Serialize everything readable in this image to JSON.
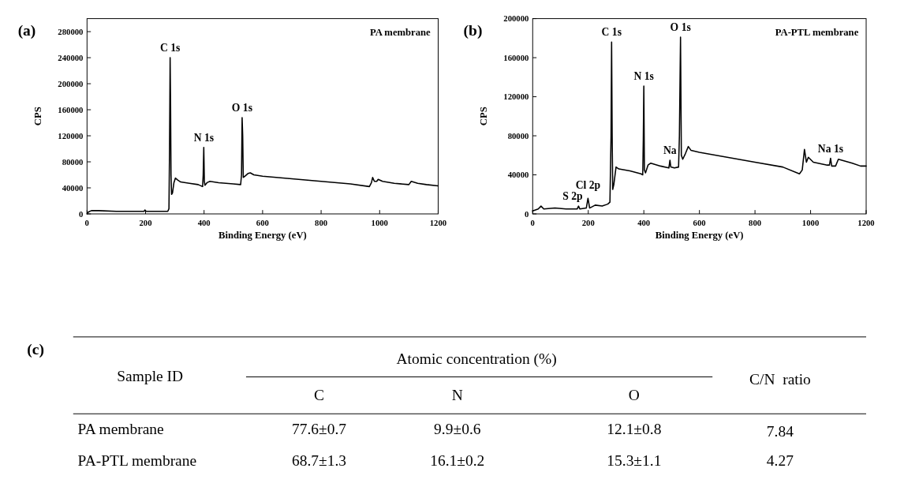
{
  "chart_data": [
    {
      "type": "line",
      "title": "(a)",
      "xlabel": "Binding Energy (eV)",
      "ylabel": "CPS",
      "xlim": [
        0,
        1200
      ],
      "xticks": [
        0,
        200,
        400,
        600,
        800,
        1000,
        1200
      ],
      "ylim": [
        0,
        300000
      ],
      "yticks": [
        0,
        40000,
        80000,
        120000,
        160000,
        200000,
        240000,
        280000
      ],
      "grid": false,
      "marker": "none",
      "line_style": "solid",
      "annotations": [
        "PA membrane",
        {
          "text": "C 1s",
          "x": 284,
          "y": 240000
        },
        {
          "text": "N 1s",
          "x": 399,
          "y": 102000
        },
        {
          "text": "O 1s",
          "x": 530,
          "y": 148000
        }
      ],
      "series": [
        {
          "color": "#000000",
          "x": [
            0,
            5,
            15,
            40,
            100,
            150,
            195,
            198,
            202,
            250,
            276,
            280,
            282,
            284,
            285.5,
            287,
            289,
            292,
            297,
            302,
            310,
            320,
            350,
            380,
            395,
            397,
            399,
            401,
            403,
            410,
            420,
            450,
            500,
            525,
            528,
            530,
            532,
            534,
            540,
            550,
            558,
            570,
            600,
            700,
            800,
            900,
            965,
            972,
            976,
            982,
            990,
            995,
            1010,
            1050,
            1100,
            1108,
            1130,
            1160,
            1200
          ],
          "values": [
            0,
            3000,
            5000,
            5000,
            4000,
            4000,
            4000,
            6000,
            4000,
            4000,
            4000,
            8000,
            100000,
            240000,
            170000,
            60000,
            30000,
            32000,
            48000,
            55000,
            52000,
            49000,
            47000,
            45000,
            42000,
            60000,
            102000,
            50000,
            44000,
            48000,
            50000,
            48000,
            46000,
            45000,
            60000,
            148000,
            120000,
            56000,
            58000,
            62000,
            63000,
            60000,
            58000,
            54000,
            50000,
            46000,
            42000,
            48000,
            56000,
            50000,
            50000,
            53000,
            50000,
            47000,
            45000,
            50000,
            47000,
            45000,
            43000
          ]
        }
      ]
    },
    {
      "type": "line",
      "title": "(b)",
      "xlabel": "Binding Energy (eV)",
      "ylabel": "CPS",
      "xlim": [
        0,
        1200
      ],
      "xticks": [
        0,
        200,
        400,
        600,
        800,
        1000,
        1200
      ],
      "ylim": [
        0,
        200000
      ],
      "yticks": [
        0,
        40000,
        80000,
        120000,
        160000,
        200000
      ],
      "grid": false,
      "marker": "none",
      "line_style": "solid",
      "annotations": [
        "PA-PTL membrane",
        {
          "text": "S 2p",
          "x": 165,
          "y": 8000
        },
        {
          "text": "Cl 2p",
          "x": 199,
          "y": 16000
        },
        {
          "text": "C 1s",
          "x": 284,
          "y": 176000
        },
        {
          "text": "N 1s",
          "x": 400,
          "y": 131000
        },
        {
          "text": "Na",
          "x": 494,
          "y": 55000
        },
        {
          "text": "O 1s",
          "x": 532,
          "y": 181000
        },
        {
          "text": "Na 1s",
          "x": 1072,
          "y": 57000
        }
      ],
      "series": [
        {
          "color": "#000000",
          "x": [
            0,
            20,
            30,
            40,
            80,
            120,
            160,
            165,
            170,
            193,
            199,
            205,
            225,
            250,
            270,
            278,
            282,
            284,
            286,
            288,
            292,
            300,
            310,
            350,
            390,
            396,
            398,
            400,
            402,
            406,
            415,
            425,
            460,
            490,
            494,
            497,
            510,
            525,
            528,
            532,
            535,
            540,
            550,
            560,
            570,
            600,
            700,
            800,
            900,
            960,
            970,
            978,
            985,
            992,
            1010,
            1060,
            1068,
            1072,
            1076,
            1090,
            1100,
            1150,
            1180,
            1200
          ],
          "values": [
            3000,
            5000,
            8000,
            5000,
            6000,
            5000,
            5000,
            8000,
            5000,
            6000,
            16000,
            6000,
            9000,
            8000,
            10000,
            12000,
            80000,
            176000,
            80000,
            25000,
            30000,
            48000,
            46000,
            44000,
            41000,
            40000,
            75000,
            131000,
            45000,
            42000,
            50000,
            52000,
            49000,
            47000,
            55000,
            48000,
            47000,
            48000,
            80000,
            181000,
            60000,
            56000,
            62000,
            69000,
            65000,
            63000,
            58000,
            53000,
            48000,
            41000,
            45000,
            66000,
            53000,
            58000,
            53000,
            50000,
            50000,
            57000,
            49000,
            49000,
            56000,
            52000,
            49000,
            49000
          ]
        }
      ]
    },
    {
      "type": "other",
      "title": "(c)",
      "ylabel": "Sample ID",
      "xlabel": "Atomic concentration (%)",
      "categories": [
        "C",
        "N",
        "O",
        "C/N  ratio"
      ],
      "y_categories": [
        "PA membrane",
        "PA-PTL membrane"
      ],
      "cell_labels": [
        [
          "77.6±0.7",
          "9.9±0.6",
          "12.1±0.8",
          "7.84"
        ],
        [
          "68.7±1.3",
          "16.1±0.2",
          "15.3±1.1",
          "4.27"
        ]
      ]
    }
  ]
}
